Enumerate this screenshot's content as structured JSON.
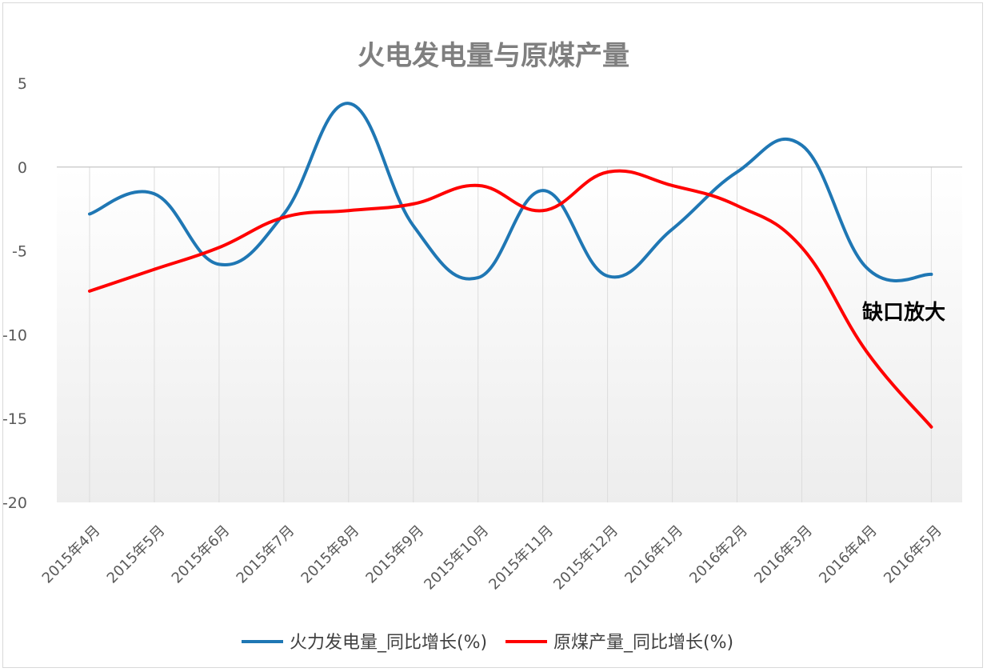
{
  "chart_data": {
    "type": "line",
    "title": "火电发电量与原煤产量",
    "xlabel": "",
    "ylabel": "",
    "ylim": [
      -20,
      5
    ],
    "yticks": [
      "5",
      "0",
      "-5",
      "-10",
      "-15",
      "-20"
    ],
    "ytick_values": [
      5,
      0,
      -5,
      -10,
      -15,
      -20
    ],
    "categories": [
      "2015年4月",
      "2015年5月",
      "2015年6月",
      "2015年7月",
      "2015年8月",
      "2015年9月",
      "2015年10月",
      "2015年11月",
      "2015年12月",
      "2016年1月",
      "2016年2月",
      "2016年3月",
      "2016年4月",
      "2016年5月"
    ],
    "series": [
      {
        "name": "火力发电量_同比增长(%)",
        "color": "#1f77b4",
        "values": [
          -2.8,
          -1.6,
          -5.8,
          -2.8,
          3.8,
          -3.5,
          -6.6,
          -1.4,
          -6.5,
          -3.7,
          -0.3,
          1.3,
          -6.0,
          -6.4
        ]
      },
      {
        "name": "原煤产量_同比增长(%)",
        "color": "#ff0000",
        "values": [
          -7.4,
          -6.1,
          -4.8,
          -3.0,
          -2.6,
          -2.2,
          -1.1,
          -2.6,
          -0.3,
          -1.1,
          -2.3,
          -4.8,
          -11.0,
          -15.5
        ]
      }
    ],
    "annotation": "缺口放大",
    "grid": "vertical",
    "legend_position": "bottom"
  }
}
